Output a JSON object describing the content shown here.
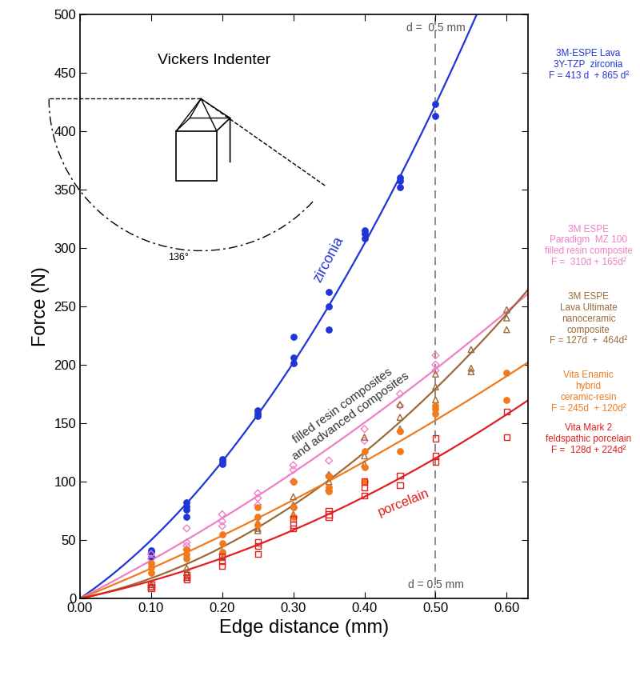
{
  "chart_data": {
    "type": "scatter",
    "x_label": "Edge distance (mm)",
    "y_label": "Force (N)",
    "xlim": [
      0,
      0.63
    ],
    "ylim": [
      0,
      500
    ],
    "xticks": [
      {
        "value": 0,
        "label": "0.00"
      },
      {
        "value": 0.1,
        "label": "0.10"
      },
      {
        "value": 0.2,
        "label": "0.20"
      },
      {
        "value": 0.3,
        "label": "0.30"
      },
      {
        "value": 0.4,
        "label": "0.40"
      },
      {
        "value": 0.5,
        "label": "0.50"
      },
      {
        "value": 0.6,
        "label": "0.60"
      }
    ],
    "yticks": [
      0,
      50,
      100,
      150,
      200,
      250,
      300,
      350,
      400,
      450,
      500
    ],
    "grid": false,
    "reference_line": {
      "x": 0.5,
      "labels": [
        "d =  0.5 mm",
        "d = 0.5 mm"
      ]
    },
    "annotations": {
      "indenter": "Vickers Indenter",
      "angle": "136°",
      "zirconia": "zirconia",
      "composites": "filled resin composites\nand advanced composites",
      "porcelain": "porcelain"
    },
    "series": [
      {
        "name": "3M-ESPE Lava\n3Y-TZP  zirconia",
        "equation": "F = 413 d  + 865 d²",
        "fit": {
          "a": 413,
          "b": 865
        },
        "color": "#1f35d6",
        "marker": "filled circle",
        "x": [
          0.1,
          0.1,
          0.1,
          0.15,
          0.15,
          0.15,
          0.15,
          0.2,
          0.2,
          0.2,
          0.25,
          0.25,
          0.25,
          0.3,
          0.3,
          0.3,
          0.35,
          0.35,
          0.35,
          0.4,
          0.4,
          0.4,
          0.45,
          0.45,
          0.45,
          0.5,
          0.5
        ],
        "values": [
          41,
          40,
          36,
          82,
          79,
          76,
          70,
          119,
          117,
          115,
          161,
          158,
          156,
          224,
          206,
          201,
          262,
          250,
          230,
          315,
          312,
          308,
          360,
          357,
          352,
          423,
          413
        ]
      },
      {
        "name": "3M ESPE\nParadigm  MZ 100\nfilled resin composite",
        "equation": "F =  310d + 165d²",
        "fit": {
          "a": 310,
          "b": 165
        },
        "color": "#ee7fc6",
        "marker": "open diamond",
        "x": [
          0.1,
          0.1,
          0.15,
          0.15,
          0.15,
          0.15,
          0.2,
          0.2,
          0.2,
          0.25,
          0.25,
          0.25,
          0.3,
          0.3,
          0.3,
          0.35,
          0.35,
          0.35,
          0.4,
          0.4,
          0.45,
          0.45,
          0.5,
          0.5,
          0.5
        ],
        "values": [
          38,
          34,
          60,
          48,
          45,
          42,
          72,
          66,
          62,
          90,
          86,
          80,
          114,
          110,
          100,
          118,
          105,
          92,
          145,
          135,
          175,
          165,
          208,
          200,
          195
        ]
      },
      {
        "name": "3M ESPE\nLava Ultimate\nnanoceramic\ncomposite",
        "equation": "F = 127d  +  464d²",
        "fit": {
          "a": 127,
          "b": 464
        },
        "color": "#9c6a3a",
        "marker": "open triangle",
        "x": [
          0.1,
          0.1,
          0.15,
          0.15,
          0.15,
          0.2,
          0.2,
          0.25,
          0.25,
          0.25,
          0.3,
          0.3,
          0.3,
          0.35,
          0.35,
          0.35,
          0.4,
          0.4,
          0.4,
          0.45,
          0.45,
          0.45,
          0.5,
          0.5,
          0.5,
          0.55,
          0.55,
          0.55,
          0.6,
          0.6,
          0.6
        ],
        "values": [
          12,
          10,
          26,
          22,
          18,
          40,
          35,
          65,
          60,
          58,
          87,
          80,
          72,
          106,
          100,
          95,
          138,
          122,
          115,
          166,
          155,
          145,
          192,
          181,
          170,
          213,
          197,
          194,
          247,
          240,
          230
        ]
      },
      {
        "name": "Vita Enamic\nhybrid\nceramic-resin",
        "equation": "F = 245d  + 120d²",
        "fit": {
          "a": 245,
          "b": 120
        },
        "color": "#f07a1c",
        "marker": "filled circle",
        "x": [
          0.1,
          0.1,
          0.1,
          0.15,
          0.15,
          0.15,
          0.2,
          0.2,
          0.2,
          0.25,
          0.25,
          0.25,
          0.3,
          0.3,
          0.3,
          0.35,
          0.35,
          0.35,
          0.4,
          0.4,
          0.4,
          0.45,
          0.45,
          0.5,
          0.5,
          0.5,
          0.6,
          0.6
        ],
        "values": [
          30,
          27,
          22,
          42,
          38,
          34,
          55,
          47,
          40,
          78,
          70,
          63,
          100,
          78,
          70,
          105,
          92,
          95,
          126,
          112,
          100,
          143,
          126,
          165,
          162,
          158,
          193,
          170
        ]
      },
      {
        "name": "Vita Mark 2\nfeldspathic porcelain",
        "equation": "F =  128d + 224d²",
        "fit": {
          "a": 128,
          "b": 224
        },
        "color": "#e01f1e",
        "marker": "open square",
        "x": [
          0.1,
          0.1,
          0.1,
          0.15,
          0.15,
          0.15,
          0.2,
          0.2,
          0.2,
          0.25,
          0.25,
          0.25,
          0.3,
          0.3,
          0.3,
          0.35,
          0.35,
          0.35,
          0.4,
          0.4,
          0.4,
          0.45,
          0.45,
          0.5,
          0.5,
          0.5,
          0.6,
          0.6
        ],
        "values": [
          12,
          10,
          9,
          20,
          18,
          16,
          36,
          32,
          28,
          48,
          45,
          38,
          68,
          63,
          60,
          75,
          72,
          70,
          100,
          95,
          88,
          105,
          97,
          137,
          122,
          117,
          160,
          138
        ]
      }
    ]
  }
}
